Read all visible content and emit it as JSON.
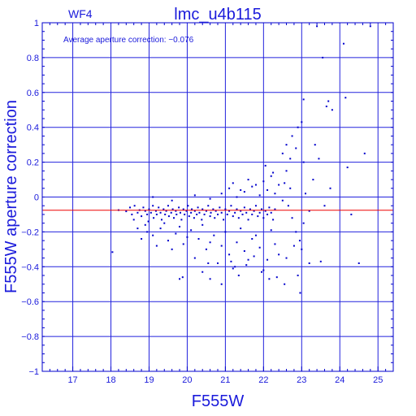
{
  "chart_data": {
    "type": "scatter",
    "chip_label": "WF4",
    "title": "lmc_u4b115",
    "annotation": "Average aperture correction: −0.076",
    "xlabel": "F555W",
    "ylabel": "F555W aperture correction",
    "xlim": [
      16.2,
      25.4
    ],
    "ylim": [
      -1,
      1
    ],
    "xticks": [
      17,
      18,
      19,
      20,
      21,
      22,
      23,
      24,
      25
    ],
    "yticks": [
      -1,
      -0.8,
      -0.6,
      -0.4,
      -0.2,
      0,
      0.2,
      0.4,
      0.6,
      0.8,
      1
    ],
    "ytick_labels": [
      "−1",
      "−0.8",
      "−0.6",
      "−0.4",
      "−0.2",
      "0",
      "0.2",
      "0.4",
      "0.6",
      "0.8",
      "1"
    ],
    "grid": true,
    "reference_line": {
      "y": -0.076
    },
    "colors": {
      "axes": "#0000cc",
      "grid": "#2222dd",
      "points": "#0000cc",
      "reference_line": "#ee0000",
      "text": "#1a1adb"
    },
    "points": [
      [
        18.04,
        -0.316
      ],
      [
        18.2,
        -0.075
      ],
      [
        18.4,
        -0.082
      ],
      [
        18.5,
        -0.06
      ],
      [
        18.55,
        -0.1
      ],
      [
        18.6,
        -0.13
      ],
      [
        18.62,
        -0.05
      ],
      [
        18.7,
        -0.09
      ],
      [
        18.75,
        -0.075
      ],
      [
        18.8,
        -0.11
      ],
      [
        18.85,
        -0.06
      ],
      [
        18.9,
        -0.08
      ],
      [
        18.95,
        -0.1
      ],
      [
        18.98,
        -0.14
      ],
      [
        19.0,
        -0.07
      ],
      [
        19.05,
        -0.09
      ],
      [
        19.1,
        -0.05
      ],
      [
        19.12,
        -0.12
      ],
      [
        19.18,
        -0.08
      ],
      [
        19.2,
        -0.1
      ],
      [
        19.25,
        -0.06
      ],
      [
        19.3,
        -0.09
      ],
      [
        19.33,
        -0.13
      ],
      [
        19.38,
        -0.07
      ],
      [
        19.42,
        -0.1
      ],
      [
        19.45,
        -0.08
      ],
      [
        19.5,
        -0.05
      ],
      [
        19.52,
        -0.11
      ],
      [
        19.58,
        -0.09
      ],
      [
        19.62,
        -0.07
      ],
      [
        19.65,
        -0.12
      ],
      [
        19.7,
        -0.08
      ],
      [
        19.72,
        -0.1
      ],
      [
        19.78,
        -0.06
      ],
      [
        19.82,
        -0.09
      ],
      [
        19.85,
        -0.13
      ],
      [
        19.9,
        -0.07
      ],
      [
        19.93,
        -0.1
      ],
      [
        19.98,
        -0.08
      ],
      [
        20.02,
        -0.05
      ],
      [
        20.05,
        -0.11
      ],
      [
        20.1,
        -0.09
      ],
      [
        20.12,
        -0.07
      ],
      [
        20.18,
        -0.12
      ],
      [
        20.2,
        -0.08
      ],
      [
        20.25,
        -0.1
      ],
      [
        20.28,
        -0.06
      ],
      [
        20.32,
        -0.09
      ],
      [
        20.38,
        -0.13
      ],
      [
        20.4,
        -0.07
      ],
      [
        20.45,
        -0.1
      ],
      [
        20.5,
        -0.08
      ],
      [
        20.55,
        -0.05
      ],
      [
        20.6,
        -0.11
      ],
      [
        20.62,
        -0.09
      ],
      [
        20.68,
        -0.07
      ],
      [
        20.72,
        -0.12
      ],
      [
        20.75,
        -0.08
      ],
      [
        20.8,
        -0.1
      ],
      [
        20.85,
        -0.06
      ],
      [
        20.9,
        -0.09
      ],
      [
        20.95,
        -0.13
      ],
      [
        21.0,
        -0.07
      ],
      [
        21.05,
        -0.1
      ],
      [
        21.1,
        -0.08
      ],
      [
        21.15,
        -0.05
      ],
      [
        21.2,
        -0.11
      ],
      [
        21.25,
        -0.09
      ],
      [
        21.3,
        -0.07
      ],
      [
        21.35,
        -0.12
      ],
      [
        21.4,
        -0.08
      ],
      [
        21.45,
        -0.1
      ],
      [
        21.5,
        -0.06
      ],
      [
        21.55,
        -0.09
      ],
      [
        21.6,
        -0.13
      ],
      [
        21.65,
        -0.07
      ],
      [
        21.7,
        -0.1
      ],
      [
        21.75,
        -0.08
      ],
      [
        21.8,
        -0.05
      ],
      [
        21.85,
        -0.11
      ],
      [
        21.9,
        -0.09
      ],
      [
        21.95,
        -0.07
      ],
      [
        22.0,
        -0.12
      ],
      [
        22.05,
        -0.08
      ],
      [
        22.1,
        -0.1
      ],
      [
        22.15,
        -0.06
      ],
      [
        22.2,
        -0.09
      ],
      [
        22.25,
        -0.13
      ],
      [
        22.3,
        -0.07
      ],
      [
        18.95,
        -0.2
      ],
      [
        19.1,
        -0.22
      ],
      [
        19.3,
        -0.18
      ],
      [
        19.5,
        -0.25
      ],
      [
        19.7,
        -0.21
      ],
      [
        19.9,
        -0.27
      ],
      [
        20.1,
        -0.19
      ],
      [
        20.3,
        -0.24
      ],
      [
        20.5,
        -0.3
      ],
      [
        20.7,
        -0.22
      ],
      [
        20.9,
        -0.28
      ],
      [
        21.1,
        -0.33
      ],
      [
        21.3,
        -0.26
      ],
      [
        21.5,
        -0.31
      ],
      [
        21.7,
        -0.24
      ],
      [
        21.9,
        -0.29
      ],
      [
        22.1,
        -0.36
      ],
      [
        22.3,
        -0.27
      ],
      [
        18.7,
        -0.18
      ],
      [
        18.8,
        -0.24
      ],
      [
        18.9,
        -0.16
      ],
      [
        19.2,
        -0.28
      ],
      [
        19.4,
        -0.15
      ],
      [
        19.6,
        -0.3
      ],
      [
        19.8,
        -0.17
      ],
      [
        20.0,
        -0.23
      ],
      [
        20.2,
        -0.35
      ],
      [
        20.4,
        -0.16
      ],
      [
        20.6,
        -0.26
      ],
      [
        20.8,
        -0.38
      ],
      [
        21.0,
        -0.2
      ],
      [
        21.2,
        -0.41
      ],
      [
        21.4,
        -0.18
      ],
      [
        21.6,
        -0.36
      ],
      [
        21.8,
        -0.22
      ],
      [
        22.0,
        -0.42
      ],
      [
        22.2,
        -0.19
      ],
      [
        22.4,
        -0.33
      ],
      [
        19.1,
        0.0
      ],
      [
        19.6,
        -0.02
      ],
      [
        20.2,
        0.01
      ],
      [
        20.6,
        -0.01
      ],
      [
        20.9,
        0.02
      ],
      [
        21.1,
        0.05
      ],
      [
        21.3,
        0.0
      ],
      [
        21.5,
        0.03
      ],
      [
        21.7,
        0.06
      ],
      [
        21.9,
        0.01
      ],
      [
        22.0,
        0.09
      ],
      [
        22.1,
        0.04
      ],
      [
        22.2,
        0.12
      ],
      [
        22.3,
        0.02
      ],
      [
        22.4,
        0.07
      ],
      [
        22.5,
        -0.02
      ],
      [
        22.6,
        0.15
      ],
      [
        22.7,
        0.05
      ],
      [
        21.2,
        0.08
      ],
      [
        21.4,
        0.04
      ],
      [
        21.6,
        0.1
      ],
      [
        21.8,
        0.07
      ],
      [
        22.05,
        0.18
      ],
      [
        22.25,
        0.14
      ],
      [
        20.4,
        -0.43
      ],
      [
        20.6,
        -0.47
      ],
      [
        20.9,
        -0.5
      ],
      [
        21.15,
        -0.37
      ],
      [
        21.35,
        -0.45
      ],
      [
        21.55,
        -0.39
      ],
      [
        21.75,
        -0.34
      ],
      [
        21.95,
        -0.43
      ],
      [
        22.15,
        -0.47
      ],
      [
        22.35,
        -0.46
      ],
      [
        22.55,
        -0.5
      ],
      [
        19.8,
        -0.47
      ],
      [
        19.88,
        -0.46
      ],
      [
        20.55,
        -0.38
      ],
      [
        21.25,
        -0.4
      ],
      [
        22.5,
        0.25
      ],
      [
        22.6,
        0.3
      ],
      [
        22.7,
        0.22
      ],
      [
        22.75,
        0.35
      ],
      [
        22.85,
        0.28
      ],
      [
        22.9,
        0.4
      ],
      [
        23.0,
        0.43
      ],
      [
        23.05,
        0.2
      ],
      [
        22.55,
        0.08
      ],
      [
        22.65,
        -0.05
      ],
      [
        22.75,
        -0.12
      ],
      [
        22.85,
        -0.2
      ],
      [
        22.95,
        -0.25
      ],
      [
        23.0,
        -0.3
      ],
      [
        23.05,
        -0.15
      ],
      [
        22.6,
        -0.35
      ],
      [
        22.8,
        -0.28
      ],
      [
        22.9,
        -0.45
      ],
      [
        22.96,
        -0.55
      ],
      [
        23.05,
        0.56
      ],
      [
        23.1,
        0.02
      ],
      [
        23.2,
        -0.08
      ],
      [
        23.3,
        0.1
      ],
      [
        23.35,
        0.3
      ],
      [
        23.45,
        0.22
      ],
      [
        23.6,
        -0.05
      ],
      [
        23.75,
        0.05
      ],
      [
        23.2,
        -0.38
      ],
      [
        23.5,
        -0.37
      ],
      [
        23.4,
        0.98
      ],
      [
        23.8,
        0.5
      ],
      [
        23.65,
        0.52
      ],
      [
        23.7,
        0.55
      ],
      [
        23.55,
        0.8
      ],
      [
        24.15,
        0.57
      ],
      [
        24.2,
        0.17
      ],
      [
        24.5,
        -0.38
      ],
      [
        24.65,
        0.25
      ],
      [
        24.8,
        0.98
      ],
      [
        24.1,
        0.88
      ],
      [
        24.3,
        -0.1
      ]
    ]
  }
}
